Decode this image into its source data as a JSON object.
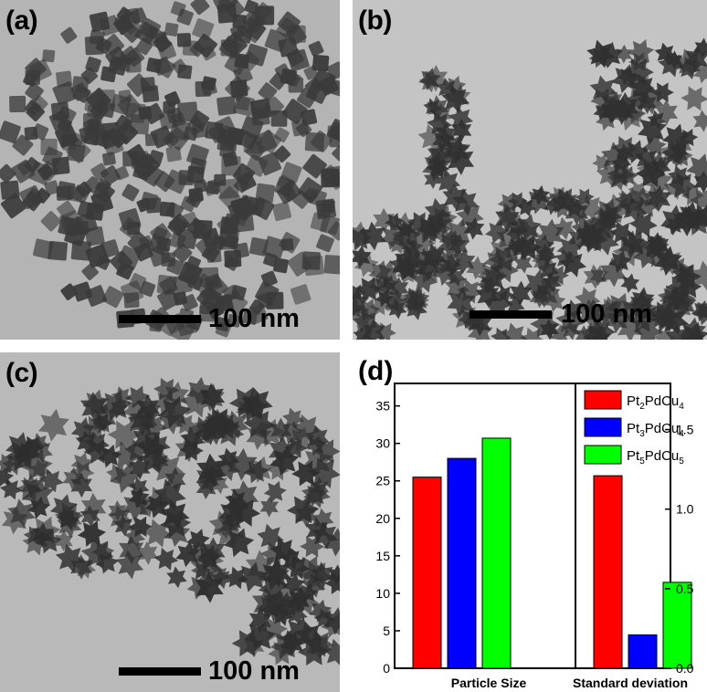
{
  "panels": [
    {
      "id": "a",
      "label": "(a)",
      "scale_bar": "100 nm",
      "background": "#b4b4b4",
      "particle_color": "#3a3a3a",
      "particle_shape": "cube"
    },
    {
      "id": "b",
      "label": "(b)",
      "scale_bar": "100 nm",
      "background": "#c4c4c4",
      "particle_color": "#303030",
      "particle_shape": "star"
    },
    {
      "id": "c",
      "label": "(c)",
      "scale_bar": "100 nm",
      "background": "#b9b9b9",
      "particle_color": "#2e2e2e",
      "particle_shape": "star"
    }
  ],
  "chart_data": {
    "panel_label": "(d)",
    "type": "bar",
    "categories": [
      "Particle Size",
      "Standard deviation"
    ],
    "series": [
      {
        "name": "Pt2PdCu4",
        "name_main": "Pt",
        "name_sub1": "2",
        "name_mid": "PdCu",
        "name_sub2": "4",
        "color": "#ff0000",
        "values": [
          25.5,
          1.21
        ]
      },
      {
        "name": "Pt3PdCu4",
        "name_main": "Pt",
        "name_sub1": "3",
        "name_mid": "PdCu",
        "name_sub2": "4",
        "color": "#0000ff",
        "values": [
          28.0,
          0.21
        ]
      },
      {
        "name": "Pt5PdCu5",
        "name_main": "Pt",
        "name_sub1": "5",
        "name_mid": "PdCu",
        "name_sub2": "5",
        "color": "#00ff00",
        "values": [
          30.7,
          0.54
        ]
      }
    ],
    "y_left": {
      "lim": [
        0,
        38
      ],
      "ticks": [
        0,
        5,
        10,
        15,
        20,
        25,
        30,
        35
      ]
    },
    "y_right": {
      "lim": [
        0,
        1.79
      ],
      "ticks": [
        "0.0",
        "0.5",
        "1.0",
        "1.5"
      ]
    },
    "legend_position": "top-right",
    "xlabel": "",
    "ylabel": ""
  }
}
